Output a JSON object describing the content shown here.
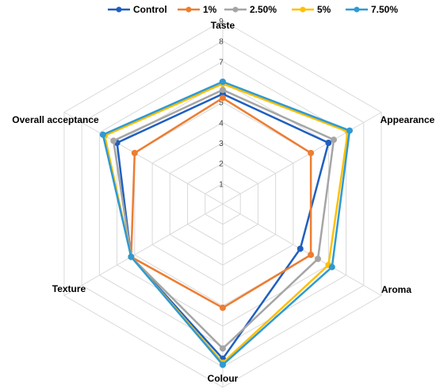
{
  "chart_data": {
    "type": "radar",
    "axes": [
      "Taste",
      "Appearance",
      "Aroma",
      "Colour",
      "Texture",
      "Overall acceptance"
    ],
    "rlim": [
      0,
      9
    ],
    "ticks": [
      "1",
      "2",
      "3",
      "4",
      "5",
      "6",
      "7",
      "8",
      "9"
    ],
    "grid": true,
    "legend_position": "top",
    "series": [
      {
        "name": "Control",
        "color": "#1f5fbf",
        "values": [
          5.4,
          6.0,
          4.4,
          7.6,
          5.2,
          6.0
        ]
      },
      {
        "name": "1%",
        "color": "#ed7d31",
        "values": [
          5.2,
          5.0,
          5.0,
          5.1,
          5.2,
          5.0
        ]
      },
      {
        "name": "2.50%",
        "color": "#a5a5a5",
        "values": [
          5.6,
          6.3,
          5.4,
          7.1,
          5.2,
          6.2
        ]
      },
      {
        "name": "5%",
        "color": "#ffc000",
        "values": [
          5.9,
          7.1,
          6.0,
          7.8,
          5.2,
          6.7
        ]
      },
      {
        "name": "7.50%",
        "color": "#2e9ad4",
        "values": [
          6.0,
          7.2,
          6.2,
          7.9,
          5.2,
          6.8
        ]
      }
    ]
  }
}
